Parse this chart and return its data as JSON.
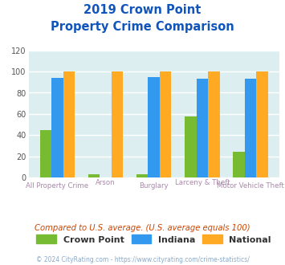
{
  "title_line1": "2019 Crown Point",
  "title_line2": "Property Crime Comparison",
  "categories": [
    "All Property Crime",
    "Arson",
    "Burglary",
    "Larceny & Theft",
    "Motor Vehicle Theft"
  ],
  "crown_point": [
    45,
    3,
    3,
    58,
    24
  ],
  "indiana": [
    94,
    0,
    95,
    93,
    93
  ],
  "national": [
    100,
    100,
    100,
    100,
    100
  ],
  "color_crown_point": "#77bb33",
  "color_indiana": "#3399ee",
  "color_national": "#ffaa22",
  "bg_color": "#ddeef0",
  "ylim": [
    0,
    120
  ],
  "yticks": [
    0,
    20,
    40,
    60,
    80,
    100,
    120
  ],
  "xlabel_color": "#aa88aa",
  "title_color": "#1155bb",
  "footer_text": "© 2024 CityRating.com - https://www.cityrating.com/crime-statistics/",
  "compare_text": "Compared to U.S. average. (U.S. average equals 100)",
  "compare_color": "#cc4400",
  "footer_color": "#88aacc",
  "legend_label_color": "#333333",
  "grid_color": "#ffffff"
}
